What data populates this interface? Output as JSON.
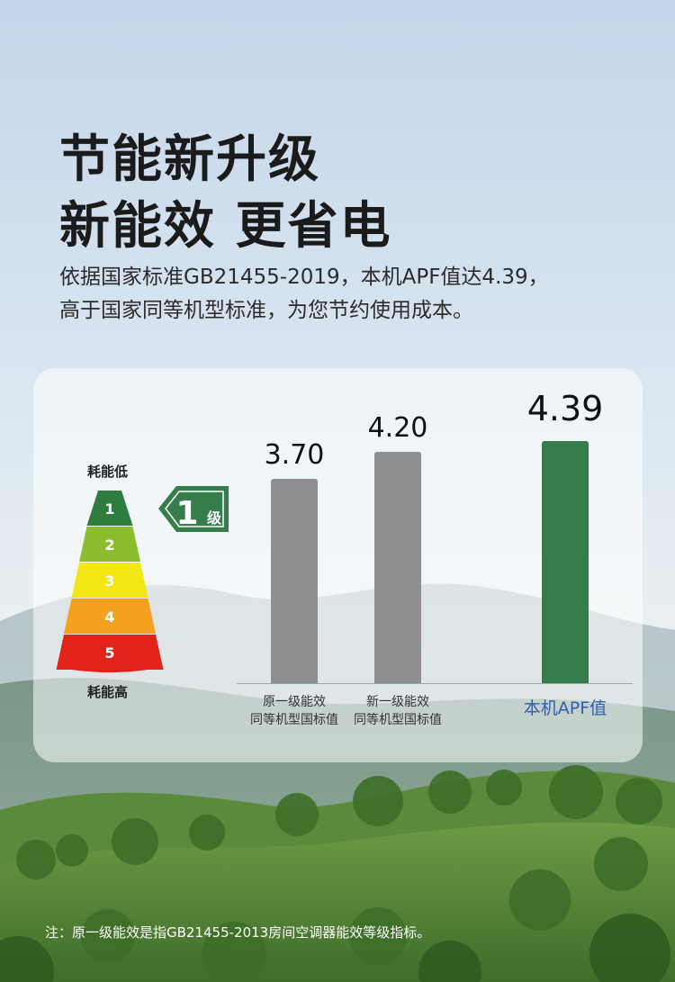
{
  "headline": {
    "line1": "节能新升级",
    "line2": "新能效 更省电"
  },
  "description": {
    "line1": "依据国家标准GB21455-2019，本机APF值达4.39，",
    "line2": "高于国家同等机型标准，为您节约使用成本。"
  },
  "energy_label": {
    "top_label": "耗能低",
    "bottom_label": "耗能高",
    "levels": [
      "1",
      "2",
      "3",
      "4",
      "5"
    ],
    "level_colors": [
      "#2f7d3e",
      "#8cbd2e",
      "#f2e614",
      "#f3a11e",
      "#e2231a"
    ],
    "badge_number": "1",
    "badge_unit": "级",
    "badge_color": "#357d4a"
  },
  "chart_data": {
    "type": "bar",
    "categories": [
      "原一级能效\n同等机型国标值",
      "新一级能效\n同等机型国标值",
      "本机APF值"
    ],
    "values": [
      3.7,
      4.2,
      4.39
    ],
    "value_labels": [
      "3.70",
      "4.20",
      "4.39"
    ],
    "colors": [
      "#8f8f8f",
      "#8f8f8f",
      "#357d4a"
    ],
    "cap_lines": [
      [
        "原一级能效",
        "同等机型国标值"
      ],
      [
        "新一级能效",
        "同等机型国标值"
      ],
      [
        "本机APF值"
      ]
    ],
    "ylim": [
      0,
      4.6
    ]
  },
  "footnote": "注：原一级能效是指GB21455-2013房间空调器能效等级指标。"
}
